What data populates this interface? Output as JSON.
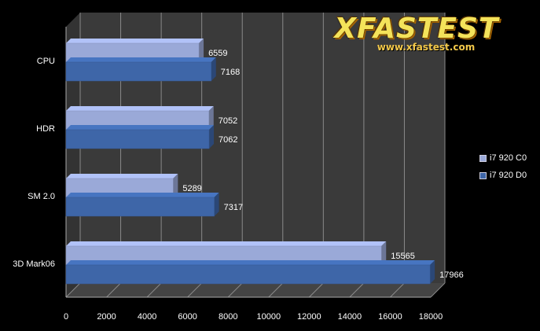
{
  "chart_data": {
    "type": "bar",
    "orientation": "horizontal",
    "style": "3d",
    "categories": [
      "CPU",
      "HDR",
      "SM 2.0",
      "3D Mark06"
    ],
    "series": [
      {
        "name": "i7 920 C0",
        "color": "#9aa9d8",
        "values": [
          6559,
          7052,
          5289,
          15565
        ]
      },
      {
        "name": "i7 920 D0",
        "color": "#3e66a8",
        "values": [
          7168,
          7062,
          7317,
          17966
        ]
      }
    ],
    "xlim": [
      0,
      18000
    ],
    "xticks": [
      0,
      2000,
      4000,
      6000,
      8000,
      10000,
      12000,
      14000,
      16000,
      18000
    ],
    "grid": true,
    "legend_position": "right",
    "data_labels": true
  },
  "logo": {
    "word": "XFASTEST",
    "url": "www.xfastest.com"
  }
}
